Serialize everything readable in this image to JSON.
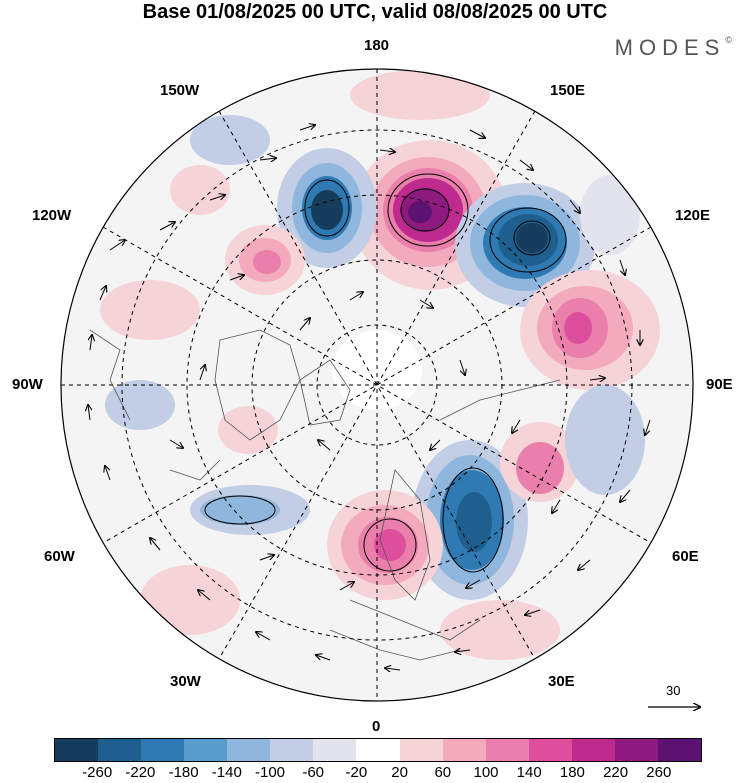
{
  "header": {
    "title": "Base 01/08/2025 00 UTC, valid 08/08/2025 00 UTC",
    "brand": "MODES",
    "brand_mark": "©"
  },
  "map": {
    "longitude_labels": {
      "top": "180",
      "bottom": "0",
      "left": "90W",
      "right": "90E",
      "upper_left_1": "150W",
      "upper_left_2": "120W",
      "upper_right_1": "150E",
      "upper_right_2": "120E",
      "lower_left_1": "60W",
      "lower_left_2": "30W",
      "lower_right_1": "60E",
      "lower_right_2": "30E"
    },
    "wind_reference": {
      "label": "30",
      "arrow": "reference-wind-arrow"
    }
  },
  "colorbar": {
    "tick_labels": [
      "-260",
      "-220",
      "-180",
      "-140",
      "-100",
      "-60",
      "-20",
      "20",
      "60",
      "100",
      "140",
      "180",
      "220",
      "260"
    ],
    "colors": [
      "#173d5c",
      "#1f5f8d",
      "#2f7ab3",
      "#5a9ccb",
      "#8fb6dc",
      "#c2cde6",
      "#e3e3ee",
      "#ffffff",
      "#f6d3d6",
      "#f2aabc",
      "#ea7fab",
      "#dd4f9d",
      "#bf2a8e",
      "#8d1a7e",
      "#5c1271"
    ]
  }
}
